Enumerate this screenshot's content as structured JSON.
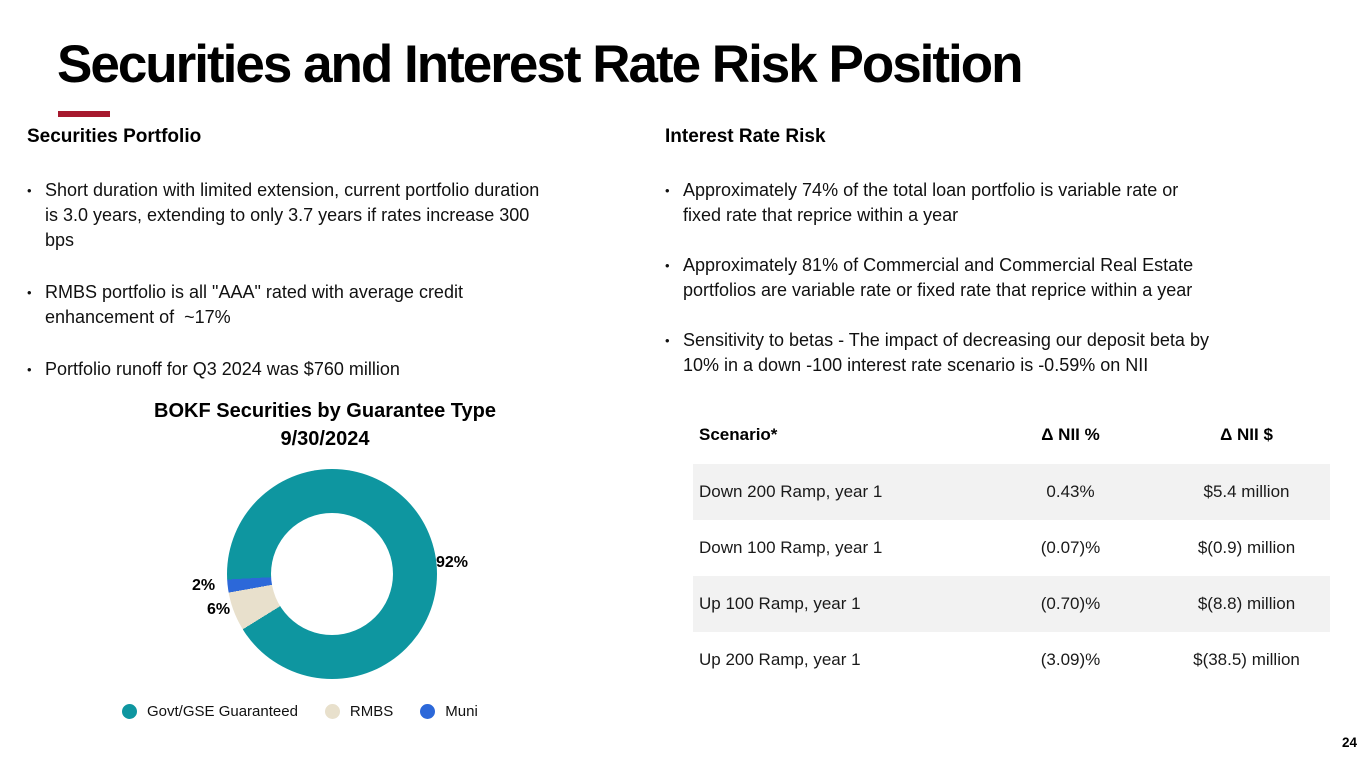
{
  "slide": {
    "title": "Securities and Interest Rate Risk Position",
    "page_number": "24",
    "accent_color": "#A6192E"
  },
  "securities_portfolio": {
    "heading": "Securities Portfolio",
    "bullet_marker": "•",
    "bullets": [
      "Short duration with limited extension, current portfolio duration\nis 3.0 years, extending to only 3.7 years if rates increase 300\nbps",
      "RMBS portfolio is all \"AAA\" rated with average credit\nenhancement of  ~17%",
      "Portfolio runoff for Q3 2024 was $760 million"
    ]
  },
  "interest_rate_risk": {
    "heading": "Interest Rate Risk",
    "bullet_marker": "•",
    "bullets": [
      "Approximately 74% of the total loan portfolio is variable rate or\nfixed rate that reprice within a year",
      "Approximately 81% of Commercial and Commercial Real Estate\nportfolios are variable rate or fixed rate that reprice within a year",
      "Sensitivity to betas - The impact of decreasing our deposit beta by\n10% in a down -100 interest rate scenario is -0.59% on NII"
    ]
  },
  "chart_data": {
    "type": "pie",
    "donut": true,
    "title": "BOKF Securities by Guarantee Type",
    "subtitle": "9/30/2024",
    "start_angle_deg": 267,
    "legend_position": "bottom",
    "segments": [
      {
        "label": "Govt/GSE Guaranteed",
        "value": 92,
        "data_label": "92%",
        "color": "#0E96A0"
      },
      {
        "label": "RMBS",
        "value": 6,
        "data_label": "6%",
        "color": "#E8E0CC"
      },
      {
        "label": "Muni",
        "value": 2,
        "data_label": "2%",
        "color": "#2C68D9"
      }
    ]
  },
  "nii_table": {
    "stripe_color": "#F2F2F2",
    "columns": [
      "Scenario*",
      "Δ NII %",
      "Δ NII $"
    ],
    "rows": [
      [
        "Down 200 Ramp, year 1",
        "0.43%",
        "$5.4 million"
      ],
      [
        "Down 100 Ramp, year 1",
        "(0.07)%",
        "$(0.9) million"
      ],
      [
        "Up 100 Ramp, year 1",
        "(0.70)%",
        "$(8.8) million"
      ],
      [
        "Up 200 Ramp, year 1",
        "(3.09)%",
        "$(38.5) million"
      ]
    ]
  }
}
